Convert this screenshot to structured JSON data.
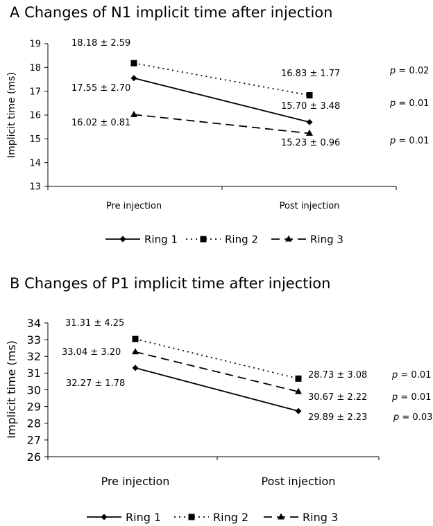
{
  "chart_data": [
    {
      "type": "line",
      "panel_letter": "A",
      "title": "Changes of N1 implicit time after injection",
      "ylabel": "Implicit time (ms)",
      "xlabel": "",
      "categories": [
        "Pre injection",
        "Post injection"
      ],
      "ylim": [
        13,
        19
      ],
      "yticks": [
        "13",
        "14",
        "15",
        "16",
        "17",
        "18",
        "19"
      ],
      "grid": false,
      "legend_position": "bottom-center",
      "series": [
        {
          "name": "Ring 1",
          "marker": "diamond",
          "dash": "solid",
          "values": [
            17.55,
            15.7
          ],
          "labels": [
            "17.55 ± 2.70",
            "15.70 ± 3.48"
          ],
          "p_value": "p = 0.01"
        },
        {
          "name": "Ring 2",
          "marker": "square",
          "dash": "dotted",
          "values": [
            18.18,
            16.83
          ],
          "labels": [
            "18.18 ± 2.59",
            "16.83 ± 1.77"
          ],
          "p_value": "p = 0.02"
        },
        {
          "name": "Ring 3",
          "marker": "triangle",
          "dash": "dashed",
          "values": [
            16.02,
            15.23
          ],
          "labels": [
            "16.02 ± 0.81",
            "15.23 ± 0.96"
          ],
          "p_value": "p = 0.01"
        }
      ]
    },
    {
      "type": "line",
      "panel_letter": "B",
      "title": "Changes of P1 implicit time after injection",
      "ylabel": "Implicit time (ms)",
      "xlabel": "",
      "categories": [
        "Pre injection",
        "Post injection"
      ],
      "ylim": [
        26,
        34
      ],
      "yticks": [
        "26",
        "27",
        "28",
        "29",
        "30",
        "31",
        "32",
        "33",
        "34"
      ],
      "grid": false,
      "legend_position": "bottom-center",
      "series": [
        {
          "name": "Ring 1",
          "marker": "diamond",
          "dash": "solid",
          "values": [
            31.31,
            28.73
          ],
          "labels": [
            "31.31 ± 4.25",
            "28.73 ±  3.08"
          ],
          "p_value": "p = 0.01"
        },
        {
          "name": "Ring 2",
          "marker": "square",
          "dash": "dotted",
          "values": [
            33.04,
            30.67
          ],
          "labels": [
            "33.04 ± 3.20",
            "30.67 ± 2.22"
          ],
          "p_value": "p = 0.01"
        },
        {
          "name": "Ring 3",
          "marker": "triangle",
          "dash": "dashed",
          "values": [
            32.27,
            29.89
          ],
          "labels": [
            "32.27 ± 1.78",
            "29.89 ± 2.23"
          ],
          "p_value": "p = 0.03"
        }
      ]
    }
  ]
}
